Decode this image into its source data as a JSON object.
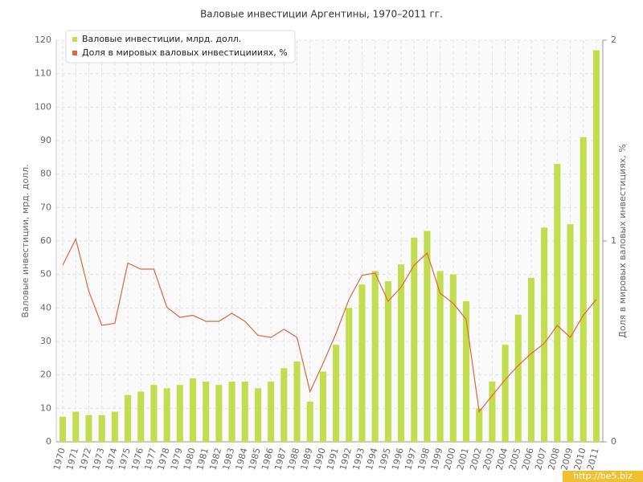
{
  "chart_data": {
    "type": "bar",
    "title": "Валовые инвестиции Аргентины, 1970–2011 гг.",
    "y_label": "Валовые инвестиции, мрд. долл.",
    "y2_label": "Доля в мировых валовых инвестициях, %",
    "watermark": "http://be5.biz",
    "categories": [
      "1970",
      "1971",
      "1972",
      "1973",
      "1974",
      "1975",
      "1976",
      "1977",
      "1978",
      "1979",
      "1980",
      "1981",
      "1982",
      "1983",
      "1984",
      "1985",
      "1986",
      "1987",
      "1988",
      "1989",
      "1990",
      "1991",
      "1992",
      "1993",
      "1994",
      "1995",
      "1996",
      "1997",
      "1998",
      "1999",
      "2000",
      "2001",
      "2002",
      "2003",
      "2004",
      "2005",
      "2006",
      "2007",
      "2008",
      "2009",
      "2010",
      "2011"
    ],
    "series": [
      {
        "name": "Валовые инвестиции, млрд. долл.",
        "color": "#c2de50",
        "type": "bar",
        "values": [
          7.5,
          9,
          8,
          8,
          9,
          14,
          15,
          17,
          16,
          17,
          19,
          18,
          17,
          18,
          18,
          16,
          18,
          22,
          24,
          12,
          21,
          29,
          40,
          47,
          51,
          48,
          53,
          61,
          63,
          51,
          50,
          42,
          10,
          18,
          29,
          38,
          49,
          64,
          83,
          65,
          91,
          117
        ]
      },
      {
        "name": "Доля в мировых валовых инвестициииях, %",
        "color": "#e0673f",
        "type": "line",
        "axis": "y2",
        "values": [
          0.88,
          1.01,
          0.75,
          0.58,
          0.59,
          0.89,
          0.86,
          0.86,
          0.67,
          0.62,
          0.63,
          0.6,
          0.6,
          0.64,
          0.6,
          0.53,
          0.52,
          0.56,
          0.52,
          0.25,
          0.39,
          0.54,
          0.71,
          0.83,
          0.84,
          0.7,
          0.77,
          0.88,
          0.94,
          0.74,
          0.69,
          0.61,
          0.15,
          0.23,
          0.31,
          0.38,
          0.44,
          0.49,
          0.58,
          0.52,
          0.63,
          0.71
        ]
      }
    ],
    "ylim": [
      0,
      120
    ],
    "yticks": [
      0,
      10,
      20,
      30,
      40,
      50,
      60,
      70,
      80,
      90,
      100,
      110,
      120
    ],
    "y2lim": [
      0,
      2
    ],
    "y2ticks": [
      0,
      1,
      2
    ],
    "grid": true,
    "legend": "top-left"
  }
}
